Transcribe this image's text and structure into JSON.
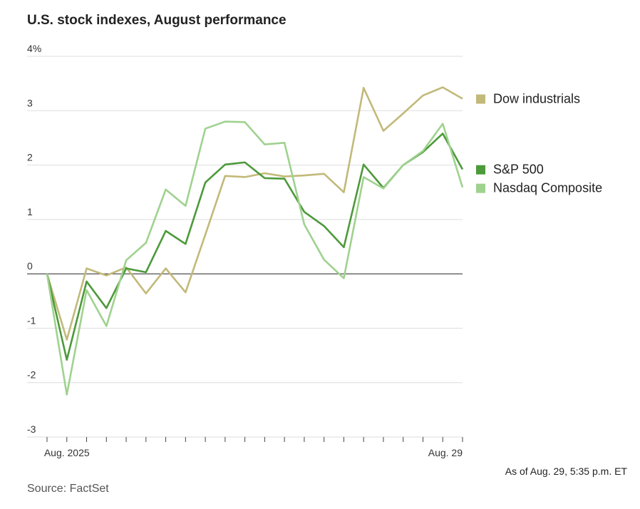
{
  "chart_data": {
    "type": "line",
    "title": "U.S. stock indexes, August performance",
    "note": "As of Aug. 29, 5:35 p.m. ET",
    "source": "Source: FactSet",
    "categories": [
      null,
      "Aug. 2025",
      null,
      null,
      null,
      null,
      null,
      null,
      null,
      null,
      null,
      null,
      null,
      null,
      null,
      null,
      null,
      null,
      null,
      null,
      null,
      "Aug. 29"
    ],
    "series": [
      {
        "name": "Dow industrials",
        "color": "#c2b97a",
        "values": [
          0,
          -1.21,
          0.1,
          -0.03,
          0.12,
          -0.36,
          0.1,
          -0.34,
          0.72,
          1.8,
          1.78,
          1.85,
          1.79,
          1.81,
          1.84,
          1.5,
          3.42,
          2.63,
          2.95,
          3.28,
          3.43,
          3.22
        ]
      },
      {
        "name": "S&P 500",
        "color": "#4c9a3a",
        "values": [
          0,
          -1.58,
          -0.14,
          -0.63,
          0.1,
          0.03,
          0.79,
          0.55,
          1.68,
          2.01,
          2.05,
          1.76,
          1.75,
          1.14,
          0.88,
          0.49,
          2.01,
          1.58,
          2.0,
          2.24,
          2.58,
          1.92
        ]
      },
      {
        "name": "Nasdaq Composite",
        "color": "#9fd28f",
        "values": [
          0,
          -2.22,
          -0.3,
          -0.96,
          0.25,
          0.57,
          1.55,
          1.25,
          2.67,
          2.8,
          2.79,
          2.38,
          2.41,
          0.91,
          0.26,
          -0.08,
          1.78,
          1.57,
          2.0,
          2.26,
          2.76,
          1.59
        ]
      }
    ],
    "ylim": [
      -3,
      4
    ],
    "yticks": [
      -3,
      -2,
      -1,
      0,
      1,
      2,
      {
        "value": 4,
        "label": "4%"
      },
      3
    ],
    "grid": true
  }
}
